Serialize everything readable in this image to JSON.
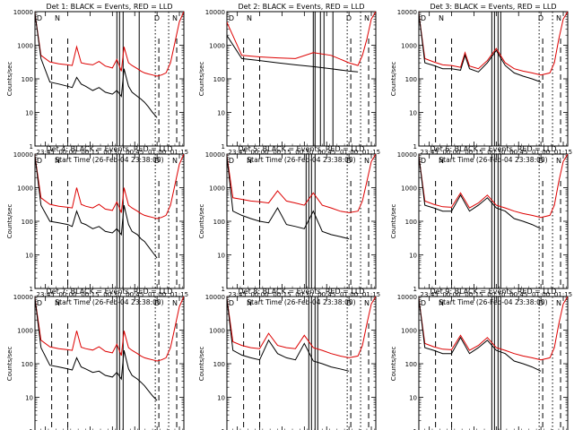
{
  "figure": {
    "colors": {
      "events": "#000000",
      "lld": "#dd0000",
      "axes": "#000000",
      "background": "#ffffff"
    },
    "shared": {
      "ylabel": "Counts/sec",
      "xlabel": "Start Time (26-Feb-04 23:38:00)",
      "ylim": [
        1,
        10000
      ],
      "yticks": [
        "1",
        "10",
        "100",
        "1000",
        "10000"
      ],
      "xticks": [
        "23:45",
        "00:00",
        "00:15",
        "00:30",
        "00:45",
        "01:00",
        "01:15"
      ],
      "x_range_hours": [
        23.633,
        25.3
      ]
    }
  },
  "chart_data": [
    {
      "type": "line",
      "title": "Det 1: BLACK = Events, RED = LLD",
      "corner_labels": [
        "D",
        "N",
        "D",
        "N"
      ],
      "series": [
        {
          "name": "Events",
          "color": "#000000",
          "x": [
            23.63,
            23.7,
            23.8,
            23.9,
            24.0,
            24.05,
            24.1,
            24.15,
            24.2,
            24.28,
            24.35,
            24.42,
            24.5,
            24.55,
            24.6,
            24.63,
            24.68,
            24.72,
            24.78,
            24.82,
            24.86,
            24.9,
            24.95,
            25.0
          ],
          "y": [
            10000,
            400,
            80,
            70,
            60,
            55,
            110,
            70,
            60,
            45,
            55,
            40,
            35,
            45,
            30,
            200,
            60,
            40,
            30,
            25,
            20,
            15,
            10,
            7
          ]
        },
        {
          "name": "LLD",
          "color": "#dd0000",
          "x": [
            23.63,
            23.7,
            23.8,
            23.9,
            24.0,
            24.05,
            24.1,
            24.15,
            24.2,
            24.28,
            24.35,
            24.42,
            24.5,
            24.55,
            24.6,
            24.63,
            24.68,
            24.72,
            24.78,
            24.82,
            24.86,
            24.9,
            24.95,
            25.0,
            25.05,
            25.1,
            25.15,
            25.2,
            25.25,
            25.3
          ],
          "y": [
            10000,
            500,
            320,
            280,
            260,
            250,
            900,
            300,
            280,
            260,
            330,
            240,
            210,
            380,
            170,
            900,
            300,
            250,
            200,
            170,
            150,
            140,
            130,
            120,
            130,
            150,
            300,
            1200,
            5000,
            10000
          ]
        }
      ],
      "solid_lines": [
        24.55,
        24.58,
        24.62,
        24.8
      ],
      "dashed_lines": [
        23.82,
        24.0,
        25.02,
        25.22
      ],
      "dotted_lines": [
        24.98,
        25.13
      ]
    },
    {
      "type": "line",
      "title": "Det 2: BLACK = Events, RED = LLD",
      "corner_labels": [
        "D",
        "N",
        "D",
        "N"
      ],
      "series": [
        {
          "name": "Events",
          "color": "#000000",
          "x": [
            23.63,
            23.8,
            24.0,
            24.2,
            24.4,
            24.6,
            24.8,
            25.0,
            25.1
          ],
          "y": [
            2000,
            400,
            350,
            300,
            260,
            230,
            200,
            170,
            160
          ]
        },
        {
          "name": "LLD",
          "color": "#dd0000",
          "x": [
            23.63,
            23.8,
            24.0,
            24.2,
            24.4,
            24.6,
            24.8,
            25.0,
            25.1,
            25.15,
            25.2,
            25.25,
            25.3
          ],
          "y": [
            5000,
            500,
            450,
            420,
            400,
            600,
            500,
            300,
            250,
            500,
            1500,
            6000,
            10000
          ]
        }
      ],
      "solid_lines": [
        24.6,
        24.62,
        24.68,
        24.72,
        24.82
      ],
      "dashed_lines": [
        23.82,
        24.0,
        25.02,
        25.22
      ],
      "dotted_lines": [
        24.98,
        25.13
      ]
    },
    {
      "type": "line",
      "title": "Det 3: BLACK = Events, RED = LLD",
      "corner_labels": [
        "D",
        "N",
        "D",
        "N"
      ],
      "series": [
        {
          "name": "Events",
          "color": "#000000",
          "x": [
            23.63,
            23.7,
            23.8,
            23.9,
            24.0,
            24.1,
            24.15,
            24.2,
            24.3,
            24.4,
            24.5,
            24.6,
            24.7,
            24.8,
            24.9,
            25.0
          ],
          "y": [
            10000,
            300,
            250,
            200,
            200,
            180,
            500,
            200,
            160,
            300,
            700,
            250,
            150,
            120,
            100,
            80
          ]
        },
        {
          "name": "LLD",
          "color": "#dd0000",
          "x": [
            23.63,
            23.7,
            23.8,
            23.9,
            24.0,
            24.1,
            24.15,
            24.2,
            24.3,
            24.4,
            24.5,
            24.6,
            24.7,
            24.8,
            24.9,
            25.0,
            25.1,
            25.15,
            25.2,
            25.25,
            25.3
          ],
          "y": [
            10000,
            400,
            320,
            260,
            250,
            220,
            600,
            240,
            200,
            350,
            800,
            300,
            200,
            170,
            150,
            130,
            150,
            300,
            1500,
            6000,
            10000
          ]
        }
      ],
      "solid_lines": [
        24.45,
        24.48,
        24.52,
        24.55
      ],
      "dashed_lines": [
        23.82,
        24.0,
        25.02,
        25.22
      ],
      "dotted_lines": [
        24.98,
        25.13
      ]
    },
    {
      "type": "line",
      "title": "Det 4: BLACK = Events, RED = LLD",
      "corner_labels": [
        "D",
        "N",
        "D",
        "N"
      ],
      "series": [
        {
          "name": "Events",
          "color": "#000000",
          "x": [
            23.63,
            23.7,
            23.8,
            23.9,
            24.0,
            24.05,
            24.1,
            24.15,
            24.2,
            24.28,
            24.35,
            24.42,
            24.5,
            24.55,
            24.6,
            24.63,
            24.68,
            24.72,
            24.78,
            24.82,
            24.86,
            24.9,
            24.95,
            25.0
          ],
          "y": [
            10000,
            300,
            100,
            90,
            80,
            70,
            200,
            90,
            80,
            60,
            70,
            50,
            45,
            60,
            40,
            300,
            80,
            50,
            40,
            30,
            25,
            18,
            12,
            8
          ]
        },
        {
          "name": "LLD",
          "color": "#dd0000",
          "x": [
            23.63,
            23.7,
            23.8,
            23.9,
            24.0,
            24.05,
            24.1,
            24.15,
            24.2,
            24.28,
            24.35,
            24.42,
            24.5,
            24.55,
            24.6,
            24.63,
            24.68,
            24.72,
            24.78,
            24.82,
            24.86,
            24.9,
            24.95,
            25.0,
            25.05,
            25.1,
            25.15,
            25.2,
            25.25,
            25.3
          ],
          "y": [
            10000,
            500,
            320,
            280,
            260,
            250,
            1000,
            320,
            280,
            250,
            320,
            230,
            210,
            380,
            180,
            1000,
            300,
            250,
            200,
            170,
            150,
            140,
            130,
            120,
            130,
            150,
            300,
            1200,
            5000,
            10000
          ]
        }
      ],
      "solid_lines": [
        24.55,
        24.58,
        24.62,
        24.8
      ],
      "dashed_lines": [
        23.82,
        24.0,
        25.02,
        25.22
      ],
      "dotted_lines": [
        24.98,
        25.13
      ]
    },
    {
      "type": "line",
      "title": "Det 5: BLACK = Events, RED = LLD",
      "corner_labels": [
        "D",
        "N",
        "D",
        "N"
      ],
      "series": [
        {
          "name": "Events",
          "color": "#000000",
          "x": [
            23.63,
            23.7,
            23.8,
            23.9,
            24.0,
            24.1,
            24.2,
            24.3,
            24.4,
            24.5,
            24.6,
            24.7,
            24.8,
            24.9,
            25.0
          ],
          "y": [
            10000,
            200,
            150,
            120,
            100,
            90,
            250,
            80,
            70,
            60,
            200,
            50,
            40,
            35,
            30
          ]
        },
        {
          "name": "LLD",
          "color": "#dd0000",
          "x": [
            23.63,
            23.7,
            23.8,
            23.9,
            24.0,
            24.1,
            24.2,
            24.3,
            24.4,
            24.5,
            24.6,
            24.7,
            24.8,
            24.9,
            25.0,
            25.1,
            25.15,
            25.2,
            25.25,
            25.3
          ],
          "y": [
            10000,
            500,
            450,
            400,
            380,
            350,
            800,
            400,
            350,
            300,
            700,
            300,
            250,
            200,
            180,
            200,
            400,
            1500,
            6000,
            10000
          ]
        }
      ],
      "solid_lines": [
        24.52,
        24.55,
        24.58,
        24.62
      ],
      "dashed_lines": [
        23.82,
        24.0,
        25.02,
        25.22
      ],
      "dotted_lines": [
        24.98,
        25.13
      ]
    },
    {
      "type": "line",
      "title": "Det 6: BLACK = Events, RED = LLD",
      "corner_labels": [
        "D",
        "N",
        "D",
        "N"
      ],
      "series": [
        {
          "name": "Events",
          "color": "#000000",
          "x": [
            23.63,
            23.7,
            23.8,
            23.9,
            24.0,
            24.1,
            24.2,
            24.3,
            24.4,
            24.5,
            24.6,
            24.7,
            24.8,
            24.9,
            25.0
          ],
          "y": [
            10000,
            300,
            250,
            200,
            200,
            600,
            200,
            300,
            500,
            250,
            200,
            120,
            100,
            80,
            60
          ]
        },
        {
          "name": "LLD",
          "color": "#dd0000",
          "x": [
            23.63,
            23.7,
            23.8,
            23.9,
            24.0,
            24.1,
            24.2,
            24.3,
            24.4,
            24.5,
            24.6,
            24.7,
            24.8,
            24.9,
            25.0,
            25.1,
            25.15,
            25.2,
            25.25,
            25.3
          ],
          "y": [
            10000,
            400,
            320,
            270,
            260,
            700,
            250,
            350,
            600,
            300,
            250,
            200,
            170,
            150,
            130,
            150,
            300,
            1500,
            6000,
            10000
          ]
        }
      ],
      "solid_lines": [
        24.45,
        24.48,
        24.52,
        24.55
      ],
      "dashed_lines": [
        23.82,
        24.0,
        25.02,
        25.22
      ],
      "dotted_lines": [
        24.98,
        25.13
      ]
    },
    {
      "type": "line",
      "title": "Det 7: BLACK = Events, RED = LLD",
      "corner_labels": [
        "D",
        "N",
        "D",
        "N"
      ],
      "series": [
        {
          "name": "Events",
          "color": "#000000",
          "x": [
            23.63,
            23.7,
            23.8,
            23.9,
            24.0,
            24.05,
            24.1,
            24.15,
            24.2,
            24.28,
            24.35,
            24.42,
            24.5,
            24.55,
            24.6,
            24.63,
            24.68,
            24.72,
            24.78,
            24.82,
            24.86,
            24.9,
            24.95,
            25.0
          ],
          "y": [
            10000,
            300,
            90,
            80,
            70,
            65,
            150,
            80,
            70,
            55,
            60,
            45,
            40,
            55,
            35,
            250,
            70,
            45,
            35,
            28,
            22,
            16,
            11,
            8
          ]
        },
        {
          "name": "LLD",
          "color": "#dd0000",
          "x": [
            23.63,
            23.7,
            23.8,
            23.9,
            24.0,
            24.05,
            24.1,
            24.15,
            24.2,
            24.28,
            24.35,
            24.42,
            24.5,
            24.55,
            24.6,
            24.63,
            24.68,
            24.72,
            24.78,
            24.82,
            24.86,
            24.9,
            24.95,
            25.0,
            25.05,
            25.1,
            25.15,
            25.2,
            25.25,
            25.3
          ],
          "y": [
            10000,
            500,
            320,
            280,
            260,
            250,
            950,
            310,
            280,
            255,
            320,
            235,
            210,
            380,
            175,
            950,
            300,
            250,
            200,
            170,
            150,
            140,
            130,
            120,
            130,
            150,
            300,
            1200,
            5000,
            10000
          ]
        }
      ],
      "solid_lines": [
        24.55,
        24.58,
        24.62,
        24.8
      ],
      "dashed_lines": [
        23.82,
        24.0,
        25.02,
        25.22
      ],
      "dotted_lines": [
        24.98,
        25.13
      ]
    },
    {
      "type": "line",
      "title": "Det 8: BLACK = Events, RED = LLD",
      "corner_labels": [
        "D",
        "N",
        "D",
        "N"
      ],
      "series": [
        {
          "name": "Events",
          "color": "#000000",
          "x": [
            23.63,
            23.7,
            23.8,
            23.9,
            24.0,
            24.1,
            24.2,
            24.3,
            24.4,
            24.5,
            24.6,
            24.7,
            24.8,
            24.9,
            25.0
          ],
          "y": [
            10000,
            250,
            180,
            150,
            130,
            500,
            200,
            150,
            130,
            400,
            120,
            100,
            80,
            70,
            60
          ]
        },
        {
          "name": "LLD",
          "color": "#dd0000",
          "x": [
            23.63,
            23.7,
            23.8,
            23.9,
            24.0,
            24.1,
            24.2,
            24.3,
            24.4,
            24.5,
            24.6,
            24.7,
            24.8,
            24.9,
            25.0,
            25.1,
            25.15,
            25.2,
            25.25,
            25.3
          ],
          "y": [
            10000,
            450,
            350,
            300,
            280,
            800,
            350,
            300,
            280,
            700,
            300,
            250,
            200,
            170,
            150,
            170,
            350,
            1500,
            6000,
            10000
          ]
        }
      ],
      "solid_lines": [
        24.55,
        24.58,
        24.62,
        24.65
      ],
      "dashed_lines": [
        23.82,
        24.0,
        25.02,
        25.22
      ],
      "dotted_lines": [
        24.98,
        25.13
      ]
    },
    {
      "type": "line",
      "title": "Det 9: BLACK = Events, RED = LLD",
      "corner_labels": [
        "D",
        "N",
        "D",
        "N"
      ],
      "series": [
        {
          "name": "Events",
          "color": "#000000",
          "x": [
            23.63,
            23.7,
            23.8,
            23.9,
            24.0,
            24.1,
            24.2,
            24.3,
            24.4,
            24.5,
            24.6,
            24.7,
            24.8,
            24.9,
            25.0
          ],
          "y": [
            10000,
            300,
            250,
            200,
            200,
            600,
            200,
            300,
            500,
            250,
            200,
            120,
            100,
            80,
            60
          ]
        },
        {
          "name": "LLD",
          "color": "#dd0000",
          "x": [
            23.63,
            23.7,
            23.8,
            23.9,
            24.0,
            24.1,
            24.2,
            24.3,
            24.4,
            24.5,
            24.6,
            24.7,
            24.8,
            24.9,
            25.0,
            25.1,
            25.15,
            25.2,
            25.25,
            25.3
          ],
          "y": [
            10000,
            400,
            320,
            270,
            260,
            700,
            250,
            350,
            600,
            300,
            250,
            200,
            170,
            150,
            130,
            150,
            300,
            1500,
            6000,
            10000
          ]
        }
      ],
      "solid_lines": [
        24.45,
        24.48,
        24.52,
        24.55
      ],
      "dashed_lines": [
        23.82,
        24.0,
        25.02,
        25.22
      ],
      "dotted_lines": [
        24.98,
        25.13
      ]
    }
  ]
}
